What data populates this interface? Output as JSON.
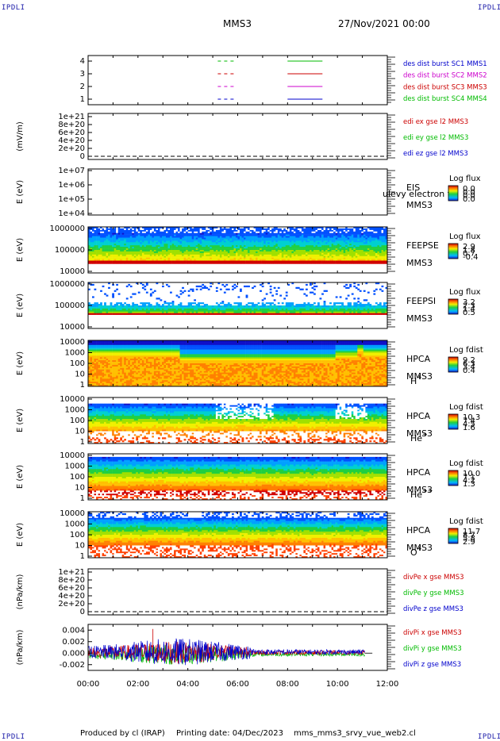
{
  "header": {
    "corner_left_top": "IPDLI",
    "corner_right_top": "IPDLI",
    "corner_left_bottom": "IPDLI",
    "corner_right_bottom": "IPDLI",
    "spacecraft": "MMS3",
    "date": "27/Nov/2021 00:00"
  },
  "footer": {
    "produced": "Produced by cl (IRAP)",
    "printing": "Printing date: 04/Dec/2023",
    "file": "mms_mms3_srvy_vue_web2.cl"
  },
  "chart_data": [
    {
      "type": "line",
      "panel": "burst",
      "yticks": [
        "4",
        "3",
        "2",
        "1"
      ],
      "legend": [
        {
          "text": "des dist burst SC1 MMS1",
          "color": "#0000cc"
        },
        {
          "text": "des dist burst SC2 MMS2",
          "color": "#cc00cc"
        },
        {
          "text": "des dist burst SC3 MMS3",
          "color": "#cc0000"
        },
        {
          "text": "des dist burst SC4 MMS4",
          "color": "#00bb00"
        }
      ],
      "series": [
        {
          "level": 4,
          "color": "#00bb00",
          "segments": [
            [
              5.2,
              5.9
            ],
            [
              8.0,
              9.4
            ]
          ]
        },
        {
          "level": 3,
          "color": "#cc0000",
          "segments": [
            [
              5.2,
              5.9
            ],
            [
              8.0,
              9.4
            ]
          ]
        },
        {
          "level": 2,
          "color": "#cc00cc",
          "segments": [
            [
              5.2,
              5.9
            ],
            [
              8.0,
              9.4
            ]
          ]
        },
        {
          "level": 1,
          "color": "#0000cc",
          "segments": [
            [
              5.2,
              5.9
            ],
            [
              8.0,
              9.4
            ]
          ]
        }
      ]
    },
    {
      "type": "line",
      "panel": "edi",
      "ylabel": "(mV/m)",
      "yticks": [
        "1e+21",
        "8e+20",
        "6e+20",
        "4e+20",
        "2e+20",
        "0"
      ],
      "legend": [
        {
          "text": "edi ex gse l2 MMS3",
          "color": "#cc0000"
        },
        {
          "text": "edi ey gse l2 MMS3",
          "color": "#00bb00"
        },
        {
          "text": "edi ez gse l2 MMS3",
          "color": "#0000cc"
        }
      ]
    },
    {
      "type": "heatmap",
      "panel": "eis",
      "ylabel": "E (eV)",
      "yticks": [
        "1e+07",
        "1e+06",
        "1e+05",
        "1e+04"
      ],
      "label1": "EIS",
      "label2": "MMS3",
      "overlay": "ulevy electron tc",
      "cbar_title": "Log flux",
      "cbar_ticks": [
        "0.0",
        "0.0",
        "0.0",
        "0.0"
      ]
    },
    {
      "type": "heatmap",
      "panel": "feepse",
      "ylabel": "E (eV)",
      "yticks": [
        "1000000",
        "100000",
        "10000"
      ],
      "label1": "FEEPSE",
      "label2": "MMS3",
      "cbar_title": "Log flux",
      "cbar_ticks": [
        "2.9",
        "1.8",
        "0.7",
        "-0.4"
      ]
    },
    {
      "type": "heatmap",
      "panel": "feepsi",
      "ylabel": "E (eV)",
      "yticks": [
        "1000000",
        "100000",
        "10000"
      ],
      "label1": "FEEPSI",
      "label2": "MMS3",
      "cbar_title": "Log flux",
      "cbar_ticks": [
        "3.2",
        "2.3",
        "1.4",
        "0.5"
      ]
    },
    {
      "type": "heatmap",
      "panel": "hpca-h",
      "ylabel": "E (eV)",
      "yticks": [
        "10000",
        "1000",
        "100",
        "10",
        "1"
      ],
      "label1": "HPCA",
      "label2": "MMS3",
      "species": "H",
      "charge": "+",
      "cbar_title": "Log fdist",
      "cbar_ticks": [
        "9.2",
        "6.3",
        "3.4",
        "0.4"
      ]
    },
    {
      "type": "heatmap",
      "panel": "hpca-he",
      "ylabel": "E (eV)",
      "yticks": [
        "10000",
        "1000",
        "100",
        "10",
        "1"
      ],
      "label1": "HPCA",
      "label2": "MMS3",
      "species": "He",
      "charge": "+",
      "cbar_title": "Log fdist",
      "cbar_ticks": [
        "10.3",
        "7.4",
        "4.5",
        "1.6"
      ]
    },
    {
      "type": "heatmap",
      "panel": "hpca-hepp",
      "ylabel": "E (eV)",
      "yticks": [
        "10000",
        "1000",
        "100",
        "10",
        "1"
      ],
      "label1": "HPCA",
      "label2": "MMS3",
      "species": "He",
      "charge": "++",
      "cbar_title": "Log fdist",
      "cbar_ticks": [
        "10.0",
        "7.1",
        "4.2",
        "1.3"
      ]
    },
    {
      "type": "heatmap",
      "panel": "hpca-o",
      "ylabel": "E (eV)",
      "yticks": [
        "10000",
        "1000",
        "100",
        "10",
        "1"
      ],
      "label1": "HPCA",
      "label2": "MMS3",
      "species": "O",
      "charge": "+",
      "cbar_title": "Log fdist",
      "cbar_ticks": [
        "11.7",
        "8.7",
        "5.8",
        "2.9"
      ]
    },
    {
      "type": "line",
      "panel": "divpe",
      "ylabel": "(nPa/km)",
      "yticks": [
        "1e+21",
        "8e+20",
        "6e+20",
        "4e+20",
        "2e+20",
        "0"
      ],
      "legend": [
        {
          "text": "divPe x gse MMS3",
          "color": "#cc0000"
        },
        {
          "text": "divPe y gse MMS3",
          "color": "#00bb00"
        },
        {
          "text": "divPe z gse MMS3",
          "color": "#0000cc"
        }
      ]
    },
    {
      "type": "line",
      "panel": "divpi",
      "ylabel": "(nPa/km)",
      "yticks": [
        "0.004",
        "0.002",
        "0.000",
        "-0.002"
      ],
      "ylim": [
        -0.003,
        0.005
      ],
      "legend": [
        {
          "text": "divPi x gse MMS3",
          "color": "#cc0000"
        },
        {
          "text": "divPi y gse MMS3",
          "color": "#00bb00"
        },
        {
          "text": "divPi z gse MMS3",
          "color": "#0000cc"
        }
      ],
      "xticks": [
        "00:00",
        "02:00",
        "04:00",
        "06:00",
        "08:00",
        "10:00",
        "12:00"
      ]
    }
  ]
}
